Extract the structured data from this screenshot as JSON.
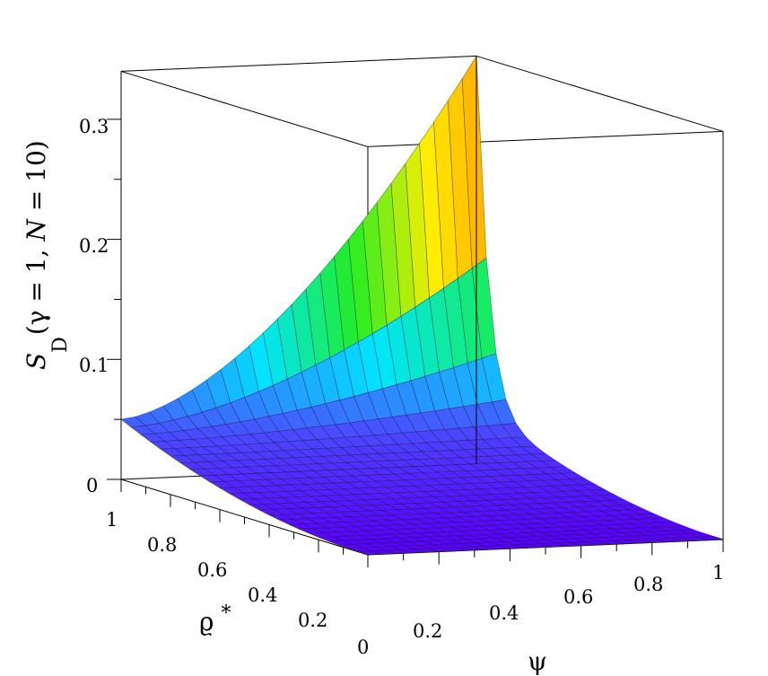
{
  "chart_data": {
    "type": "surface3d",
    "title": "",
    "zlabel": {
      "prefix": "S",
      "subscript": "D",
      "open": "(γ = 1, ",
      "italic": "N",
      "close": " = 10)"
    },
    "xlabel": "ψ",
    "ylabel": "ϱ",
    "ylabel_sup": "*",
    "x_ticks": [
      "0",
      "0.2",
      "0.4",
      "0.6",
      "0.8",
      "1"
    ],
    "y_ticks": [
      "0.2",
      "0.4",
      "0.6",
      "0.8",
      "1"
    ],
    "z_ticks": [
      "0",
      "0.1",
      "0.2",
      "0.3"
    ],
    "xlim": [
      0,
      1
    ],
    "ylim": [
      0,
      1
    ],
    "zlim": [
      0,
      0.34
    ],
    "grid_lines": 25,
    "surface_corners": {
      "psi0_rho0": 0.0,
      "psi0_rho1": 0.05,
      "psi1_rho0": 0.0,
      "psi1_rho1": 0.34
    },
    "colormap": [
      "#5a00ff",
      "#4a4aff",
      "#00e5ff",
      "#22ee22",
      "#ffee00",
      "#ff9900",
      "#ee2200"
    ],
    "surface_function": "approx 0.05*rho^2 + 0.29*rho^20*psi^1.6 + corner interpolation"
  }
}
